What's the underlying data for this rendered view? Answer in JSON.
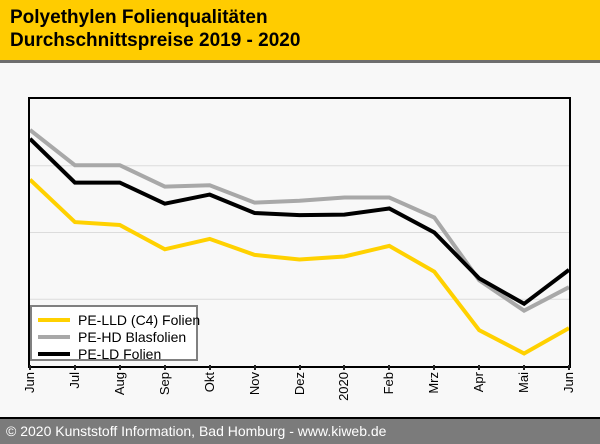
{
  "header": {
    "title_line1": "Polyethylen Folienqualitäten",
    "title_line2": "Durchschnittspreise 2019 - 2020"
  },
  "chart_data": {
    "type": "line",
    "title": "Polyethylen Folienqualitäten Durchschnittspreise 2019 - 2020",
    "x_categories": [
      "Jun",
      "Jul",
      "Aug",
      "Sep",
      "Okt",
      "Nov",
      "Dez",
      "2020",
      "Feb",
      "Mrz",
      "Apr",
      "Mai",
      "Jun"
    ],
    "y_axis": {
      "labels_visible": false,
      "scale": "relative-index-0-100",
      "range": [
        0,
        100
      ],
      "gridlines_at": [
        25,
        50,
        75
      ]
    },
    "grid": "horizontal-only",
    "legend_position": "bottom-left-inside",
    "series": [
      {
        "name": "PE-LLD (C4) Folien",
        "color": "#FFD100",
        "values": [
          69.8,
          53.9,
          52.8,
          43.7,
          47.6,
          41.6,
          39.9,
          41.0,
          45.0,
          35.3,
          13.4,
          4.7,
          14.2
        ]
      },
      {
        "name": "PE-HD Blasfolien",
        "color": "#A8A8A8",
        "values": [
          88.4,
          75.2,
          75.2,
          67.2,
          67.7,
          61.2,
          61.9,
          63.1,
          63.1,
          55.6,
          32.1,
          20.7,
          29.5
        ]
      },
      {
        "name": "PE-LD Folien",
        "color": "#000000",
        "values": [
          85.1,
          68.7,
          68.7,
          60.8,
          64.2,
          57.3,
          56.5,
          56.7,
          59.0,
          50.0,
          32.8,
          23.3,
          36.0
        ]
      }
    ]
  },
  "footer": {
    "text": "© 2020 Kunststoff Information, Bad Homburg - www.kiweb.de"
  },
  "colors": {
    "header_bg": "#FFCC00",
    "header_text": "#000000",
    "separator": "#6E6E6E",
    "canvas_bg": "#F8F8F8",
    "plot_border": "#000000",
    "gridline": "#DCDCDC",
    "legend_border": "#808080",
    "legend_bg": "#FFFFFF",
    "footer_bg": "#7B7B7B",
    "footer_text": "#FFFFFF",
    "axis_label": "#000000"
  }
}
